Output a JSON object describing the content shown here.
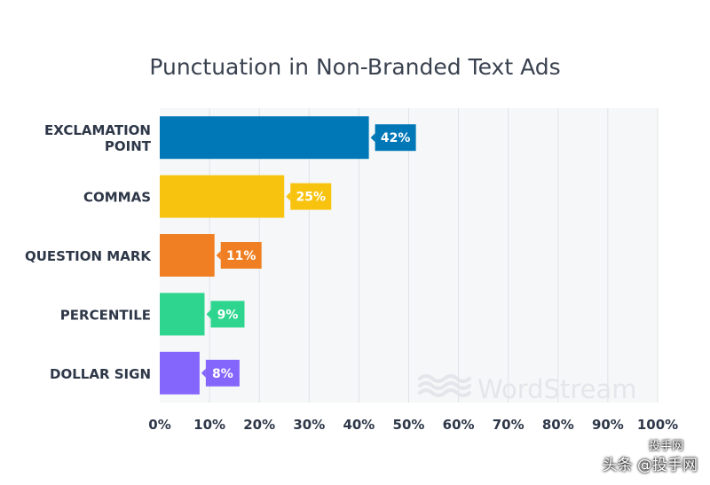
{
  "chart_data": {
    "type": "bar",
    "orientation": "horizontal",
    "title": "Punctuation in Non-Branded Text Ads",
    "categories": [
      "EXCLAMATION POINT",
      "COMMAS",
      "QUESTION MARK",
      "PERCENTILE",
      "DOLLAR SIGN"
    ],
    "values": [
      42,
      25,
      11,
      9,
      8
    ],
    "data_labels": [
      "42%",
      "25%",
      "11%",
      "9%",
      "8%"
    ],
    "bar_colors": [
      "#0077b6",
      "#f8c30e",
      "#ef7f22",
      "#2dd58e",
      "#8466fd"
    ],
    "xlim": [
      0,
      100
    ],
    "x_ticks": [
      "0%",
      "10%",
      "20%",
      "30%",
      "40%",
      "50%",
      "60%",
      "70%",
      "80%",
      "90%",
      "100%"
    ],
    "grid": true,
    "plot_background": "#f6f7f8",
    "grid_color": "#e0e3e6"
  },
  "watermark": {
    "brand": "WordStream"
  },
  "corner_watermark": {
    "line1": "投手网",
    "line2": "头条 @投手网"
  }
}
